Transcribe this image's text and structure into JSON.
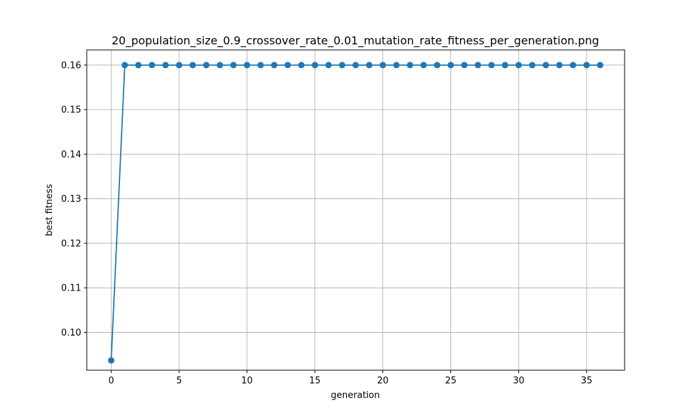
{
  "chart_data": {
    "type": "line",
    "title": "20_population_size_0.9_crossover_rate_0.01_mutation_rate_fitness_per_generation.png",
    "xlabel": "generation",
    "ylabel": "best fitness",
    "xlim": [
      -1.8,
      37.8
    ],
    "ylim": [
      0.0915,
      0.1634
    ],
    "xticks": [
      0,
      5,
      10,
      15,
      20,
      25,
      30,
      35
    ],
    "yticks": [
      0.1,
      0.11,
      0.12,
      0.13,
      0.14,
      0.15,
      0.16
    ],
    "grid": true,
    "color": "#1f77b4",
    "marker": "circle",
    "x": [
      0,
      1,
      2,
      3,
      4,
      5,
      6,
      7,
      8,
      9,
      10,
      11,
      12,
      13,
      14,
      15,
      16,
      17,
      18,
      19,
      20,
      21,
      22,
      23,
      24,
      25,
      26,
      27,
      28,
      29,
      30,
      31,
      32,
      33,
      34,
      35,
      36
    ],
    "y": [
      0.0937,
      0.16,
      0.16,
      0.16,
      0.16,
      0.16,
      0.16,
      0.16,
      0.16,
      0.16,
      0.16,
      0.16,
      0.16,
      0.16,
      0.16,
      0.16,
      0.16,
      0.16,
      0.16,
      0.16,
      0.16,
      0.16,
      0.16,
      0.16,
      0.16,
      0.16,
      0.16,
      0.16,
      0.16,
      0.16,
      0.16,
      0.16,
      0.16,
      0.16,
      0.16,
      0.16,
      0.16
    ]
  }
}
